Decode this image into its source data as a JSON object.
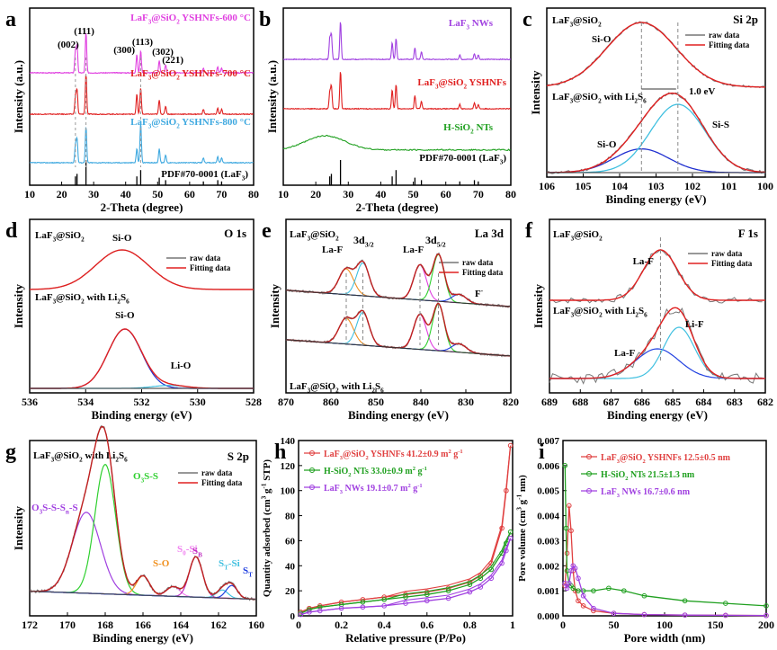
{
  "chart_data": [
    {
      "id": "a",
      "type": "line",
      "letter": "a",
      "xlabel": "2-Theta (degree)",
      "ylabel": "Intensity (a.u.)",
      "xlim": [
        10,
        80
      ],
      "xticks": [
        10,
        20,
        30,
        40,
        50,
        60,
        70,
        80
      ],
      "series": [
        {
          "name": "LaF3@SiO2 YSHNFs-600 °C",
          "label_main": "LaF",
          "label_rest": "@SiO",
          "label_tail": " YSHNFs-600 °C",
          "color": "#e040e0"
        },
        {
          "name": "LaF3@SiO2 YSHNFs-700 °C",
          "label_main": "LaF",
          "label_rest": "@SiO",
          "label_tail": " YSHNFs-700 °C",
          "color": "#e02020"
        },
        {
          "name": "LaF3@SiO2 YSHNFs-800 °C",
          "label_main": "LaF",
          "label_rest": "@SiO",
          "label_tail": " YSHNFs-800 °C",
          "color": "#3fa9e0"
        }
      ],
      "peaks": [
        24.3,
        24.8,
        27.6,
        43.5,
        44.7,
        50.5,
        52.5,
        64.3,
        68.8,
        70.0
      ],
      "reference_lines": [
        24.3,
        24.8,
        27.6,
        43.5,
        44.7,
        50.5,
        52.5,
        64.3,
        68.8,
        70.0
      ],
      "reference_heights": [
        0.35,
        0.45,
        1.0,
        0.35,
        0.6,
        0.3,
        0.2,
        0.15,
        0.2,
        0.15
      ],
      "hkl": [
        "(002)",
        "(111)",
        "(300)",
        "(113)",
        "(302)",
        "(221)"
      ],
      "pdf_label": "PDF#70-0001 (LaF",
      "pdf_tail": ")"
    },
    {
      "id": "b",
      "type": "line",
      "letter": "b",
      "xlabel": "2-Theta (degree)",
      "ylabel": "Intensity (a.u.)",
      "xlim": [
        10,
        80
      ],
      "xticks": [
        10,
        20,
        30,
        40,
        50,
        60,
        70,
        80
      ],
      "series": [
        {
          "name": "LaF3 NWs",
          "color": "#a040e0"
        },
        {
          "name": "LaF3@SiO2 YSHNFs",
          "color": "#e02020"
        },
        {
          "name": "H-SiO2 NTs",
          "color": "#20a020"
        }
      ],
      "labels": {
        "nws": "LaF",
        "nws_tail": " NWs",
        "yshnfs": "LaF",
        "yshnfs_mid": "@SiO",
        "yshnfs_tail": " YSHNFs",
        "hsio2": "H-SiO",
        "hsio2_tail": " NTs"
      },
      "pdf_label": "PDF#70-0001 (LaF",
      "pdf_tail": ")"
    },
    {
      "id": "c",
      "type": "line",
      "letter": "c",
      "title": "Si 2p",
      "xlabel": "Binding energy (eV)",
      "ylabel": "Intensity",
      "xlim": [
        106,
        100
      ],
      "xticks": [
        106,
        105,
        104,
        103,
        102,
        101,
        100
      ],
      "legend": [
        "raw data",
        "Fitting data"
      ],
      "sample_top": "LaF3@SiO2",
      "sample_bottom": "LaF3@SiO2 with Li2S6",
      "peaks_top": [
        {
          "name": "Si-O",
          "center": 103.4
        }
      ],
      "peaks_bottom": [
        {
          "name": "Si-O",
          "center": 103.4
        },
        {
          "name": "Si-S",
          "center": 102.4
        }
      ],
      "shift_label": "1.0 eV"
    },
    {
      "id": "d",
      "type": "line",
      "letter": "d",
      "title": "O 1s",
      "xlabel": "Binding energy (eV)",
      "ylabel": "Intensity",
      "xlim": [
        536,
        528
      ],
      "xticks": [
        536,
        534,
        532,
        530,
        528
      ],
      "legend": [
        "raw data",
        "Fitting data"
      ],
      "peaks_top": [
        {
          "name": "Si-O",
          "center": 532.7
        }
      ],
      "peaks_bottom": [
        {
          "name": "Si-O",
          "center": 532.6
        },
        {
          "name": "Li-O",
          "center": 531.0
        }
      ]
    },
    {
      "id": "e",
      "type": "line",
      "letter": "e",
      "title": "La 3d",
      "xlabel": "Binding energy (eV)",
      "ylabel": "Intensity",
      "xlim": [
        870,
        820
      ],
      "xticks": [
        870,
        860,
        850,
        840,
        830,
        820
      ],
      "legend": [
        "raw data",
        "Fitting data"
      ],
      "peaks": [
        {
          "name": "La-F (3d3/2)",
          "center": 856.6
        },
        {
          "name": "3d3/2",
          "center": 852.9
        },
        {
          "name": "La-F (3d5/2)",
          "center": 840.2
        },
        {
          "name": "3d5/2",
          "center": 836.1
        },
        {
          "name": "F-",
          "center": 831.5
        }
      ],
      "labels": {
        "laf": "La-F",
        "d32": "3d",
        "d32_sub": "3/2",
        "d52": "3d",
        "d52_sub": "5/2",
        "fminus": "F",
        "fminus_sup": "-"
      }
    },
    {
      "id": "f",
      "type": "line",
      "letter": "f",
      "title": "F 1s",
      "xlabel": "Binding energy (eV)",
      "ylabel": "Intensity",
      "xlim": [
        689,
        682
      ],
      "xticks": [
        689,
        688,
        687,
        686,
        685,
        684,
        683,
        682
      ],
      "legend": [
        "raw data",
        "Fitting data"
      ],
      "peaks_top": [
        {
          "name": "La-F",
          "center": 685.4
        }
      ],
      "peaks_bottom": [
        {
          "name": "La-F",
          "center": 685.4
        },
        {
          "name": "Li-F",
          "center": 684.8
        }
      ]
    },
    {
      "id": "g",
      "type": "line",
      "letter": "g",
      "title": "S 2p",
      "xlabel": "Binding energy (eV)",
      "ylabel": "Intensity",
      "xlim": [
        172,
        160
      ],
      "xticks": [
        172,
        170,
        168,
        166,
        164,
        162,
        160
      ],
      "legend": [
        "raw data",
        "Fitting data"
      ],
      "peaks": [
        {
          "name": "O3S-S-Sn-S",
          "center": 169.0,
          "color": "#a040e0"
        },
        {
          "name": "O3S-S",
          "center": 168.0,
          "color": "#30d030"
        },
        {
          "name": "S-O",
          "center": 166.0,
          "color": "#f0901f"
        },
        {
          "name": "S0-Si",
          "center": 164.4,
          "color": "#f080f0"
        },
        {
          "name": "SB",
          "center": 163.2,
          "color": "#c030c0"
        },
        {
          "name": "ST-Si",
          "center": 161.8,
          "color": "#40c0e0"
        },
        {
          "name": "ST",
          "center": 161.3,
          "color": "#2040e0"
        }
      ]
    },
    {
      "id": "h",
      "type": "line",
      "letter": "h",
      "xlabel": "Relative pressure (P/Po)",
      "ylabel": "Quantity adsorbed (cm3 g-1 STP)",
      "xlim": [
        0,
        1.0
      ],
      "ylim": [
        0,
        140
      ],
      "xticks": [
        0.0,
        0.2,
        0.4,
        0.6,
        0.8,
        1.0
      ],
      "yticks": [
        0,
        20,
        40,
        60,
        80,
        100,
        120,
        140
      ],
      "series": [
        {
          "name": "LaF3@SiO2 YSHNFs",
          "value": "41.2±0.9 m2 g-1",
          "color": "#e04040",
          "x": [
            0.01,
            0.05,
            0.1,
            0.2,
            0.3,
            0.4,
            0.5,
            0.6,
            0.7,
            0.8,
            0.85,
            0.9,
            0.95,
            0.97,
            0.99
          ],
          "y": [
            3,
            6,
            8,
            11,
            13,
            15,
            17,
            19,
            22,
            27,
            32,
            42,
            70,
            100,
            136
          ]
        },
        {
          "name": "H-SiO2 NTs",
          "value": "33.0±0.9 m2 g-1",
          "color": "#20a020",
          "x": [
            0.01,
            0.05,
            0.1,
            0.2,
            0.3,
            0.4,
            0.5,
            0.6,
            0.7,
            0.8,
            0.85,
            0.9,
            0.95,
            0.97,
            0.99
          ],
          "y": [
            2,
            5,
            7,
            9,
            11,
            13,
            15,
            17,
            20,
            25,
            30,
            37,
            50,
            58,
            67
          ]
        },
        {
          "name": "LaF3 NWs",
          "value": "19.1±0.7 m2 g-1",
          "color": "#a040e0",
          "x": [
            0.01,
            0.05,
            0.1,
            0.2,
            0.3,
            0.4,
            0.5,
            0.6,
            0.7,
            0.8,
            0.85,
            0.9,
            0.95,
            0.97,
            0.99
          ],
          "y": [
            1,
            3,
            4,
            6,
            7,
            8,
            10,
            12,
            14,
            19,
            23,
            30,
            42,
            52,
            62
          ]
        }
      ]
    },
    {
      "id": "i",
      "type": "line",
      "letter": "i",
      "xlabel": "Pore width (nm)",
      "ylabel": "Pore volume (cm3 g-1 nm)",
      "xlim": [
        0,
        200
      ],
      "ylim": [
        0,
        0.007
      ],
      "xticks": [
        0,
        50,
        100,
        150,
        200
      ],
      "yticks": [
        0.0,
        0.001,
        0.002,
        0.003,
        0.004,
        0.005,
        0.006,
        0.007
      ],
      "ytick_labels": [
        "0.000",
        "0.001",
        "0.002",
        "0.003",
        "0.004",
        "0.005",
        "0.006",
        "0.007"
      ],
      "series": [
        {
          "name": "LaF3@SiO2 YSHNFs",
          "value": "12.5±0.5 nm",
          "color": "#e04040",
          "x": [
            2,
            4,
            6,
            8,
            10,
            12,
            15,
            20,
            30,
            50,
            80,
            120,
            160,
            200
          ],
          "y": [
            0.0012,
            0.0025,
            0.0044,
            0.0034,
            0.0018,
            0.001,
            0.0006,
            0.0004,
            0.0002,
            0.0001,
            5e-05,
            3e-05,
            2e-05,
            1e-05
          ]
        },
        {
          "name": "H-SiO2 NTs",
          "value": "21.5±1.3 nm",
          "color": "#20a020",
          "x": [
            2,
            3,
            4,
            6,
            8,
            10,
            15,
            20,
            30,
            45,
            60,
            80,
            120,
            160,
            200
          ],
          "y": [
            0.006,
            0.0035,
            0.0018,
            0.0013,
            0.0012,
            0.0011,
            0.001,
            0.001,
            0.001,
            0.0011,
            0.001,
            0.0008,
            0.0006,
            0.0005,
            0.0004
          ]
        },
        {
          "name": "LaF3 NWs",
          "value": "16.7±0.6 nm",
          "color": "#a040e0",
          "x": [
            2,
            4,
            6,
            8,
            10,
            12,
            15,
            20,
            30,
            50,
            80,
            120,
            160,
            200
          ],
          "y": [
            0.0013,
            0.0011,
            0.0013,
            0.0018,
            0.002,
            0.0019,
            0.0015,
            0.0008,
            0.0003,
            0.0001,
            5e-05,
            3e-05,
            2e-05,
            1e-05
          ]
        }
      ]
    }
  ]
}
